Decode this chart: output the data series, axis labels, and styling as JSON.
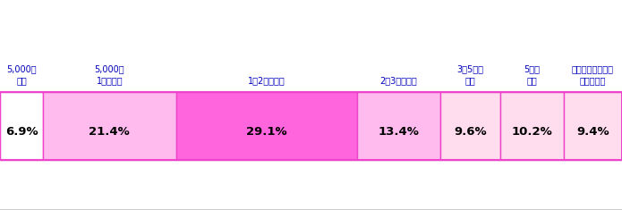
{
  "categories": [
    "5,000円\n未満",
    "5,000～\n1万円未満",
    "1～2万円未満",
    "2～3万円未満",
    "3～5万円\n未満",
    "5万円\n以上",
    "貯蓄等は（まだ）\nしていない"
  ],
  "values": [
    6.9,
    21.4,
    29.1,
    13.4,
    9.6,
    10.2,
    9.4
  ],
  "colors": [
    "#ffffff",
    "#ffbbee",
    "#ff66dd",
    "#ffbbee",
    "#ffddee",
    "#ffddee",
    "#ffddee"
  ],
  "bar_edge_color": "#ee44cc",
  "label_color": "#0000bb",
  "pct_color": "#000000",
  "xlim": [
    0,
    100
  ],
  "xticks": [
    0,
    20,
    40,
    60,
    80,
    100
  ],
  "figsize": [
    6.95,
    2.35
  ],
  "dpi": 100,
  "label_fontsize": 7.0,
  "pct_fontsize": 9.5
}
